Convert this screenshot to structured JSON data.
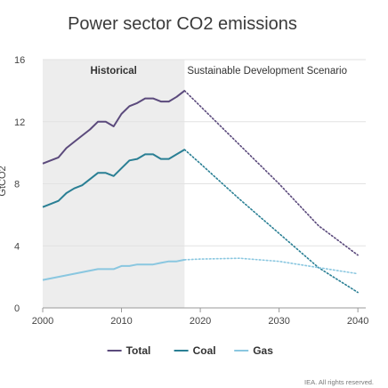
{
  "chart_data": {
    "type": "line",
    "title": "Power sector CO2 emissions",
    "ylabel": "GtCO2",
    "xlabel": "",
    "xlim": [
      2000,
      2041
    ],
    "ylim": [
      0,
      16
    ],
    "x_ticks": [
      2000,
      2010,
      2020,
      2030,
      2040
    ],
    "y_ticks": [
      0,
      4,
      8,
      12,
      16
    ],
    "grid": "horizontal",
    "shaded_region": {
      "from": 2000,
      "to": 2018,
      "color": "#ededed"
    },
    "annotations": [
      {
        "text": "Historical",
        "bold": true
      },
      {
        "text": "Sustainable Development Scenario",
        "bold": false
      }
    ],
    "legend_position": "bottom",
    "credit": "IEA. All rights reserved.",
    "series": [
      {
        "name": "Total",
        "color": "#5b4a7c",
        "historical": {
          "x": [
            2000,
            2001,
            2002,
            2003,
            2004,
            2005,
            2006,
            2007,
            2008,
            2009,
            2010,
            2011,
            2012,
            2013,
            2014,
            2015,
            2016,
            2017,
            2018
          ],
          "y": [
            9.3,
            9.5,
            9.7,
            10.3,
            10.7,
            11.1,
            11.5,
            12.0,
            12.0,
            11.7,
            12.5,
            13.0,
            13.2,
            13.5,
            13.5,
            13.3,
            13.3,
            13.6,
            14.0
          ]
        },
        "scenario": {
          "x": [
            2018,
            2020,
            2025,
            2030,
            2035,
            2040
          ],
          "y": [
            14.0,
            13.0,
            10.5,
            8.0,
            5.3,
            3.4
          ]
        }
      },
      {
        "name": "Coal",
        "color": "#2a7f94",
        "historical": {
          "x": [
            2000,
            2001,
            2002,
            2003,
            2004,
            2005,
            2006,
            2007,
            2008,
            2009,
            2010,
            2011,
            2012,
            2013,
            2014,
            2015,
            2016,
            2017,
            2018
          ],
          "y": [
            6.5,
            6.7,
            6.9,
            7.4,
            7.7,
            7.9,
            8.3,
            8.7,
            8.7,
            8.5,
            9.0,
            9.5,
            9.6,
            9.9,
            9.9,
            9.6,
            9.6,
            9.9,
            10.2
          ]
        },
        "scenario": {
          "x": [
            2018,
            2020,
            2025,
            2030,
            2035,
            2040
          ],
          "y": [
            10.2,
            9.3,
            7.0,
            4.8,
            2.6,
            1.0
          ]
        }
      },
      {
        "name": "Gas",
        "color": "#8ac7e0",
        "historical": {
          "x": [
            2000,
            2001,
            2002,
            2003,
            2004,
            2005,
            2006,
            2007,
            2008,
            2009,
            2010,
            2011,
            2012,
            2013,
            2014,
            2015,
            2016,
            2017,
            2018
          ],
          "y": [
            1.8,
            1.9,
            2.0,
            2.1,
            2.2,
            2.3,
            2.4,
            2.5,
            2.5,
            2.5,
            2.7,
            2.7,
            2.8,
            2.8,
            2.8,
            2.9,
            3.0,
            3.0,
            3.1
          ]
        },
        "scenario": {
          "x": [
            2018,
            2020,
            2025,
            2030,
            2035,
            2040
          ],
          "y": [
            3.1,
            3.15,
            3.2,
            3.0,
            2.6,
            2.2
          ]
        }
      }
    ]
  }
}
